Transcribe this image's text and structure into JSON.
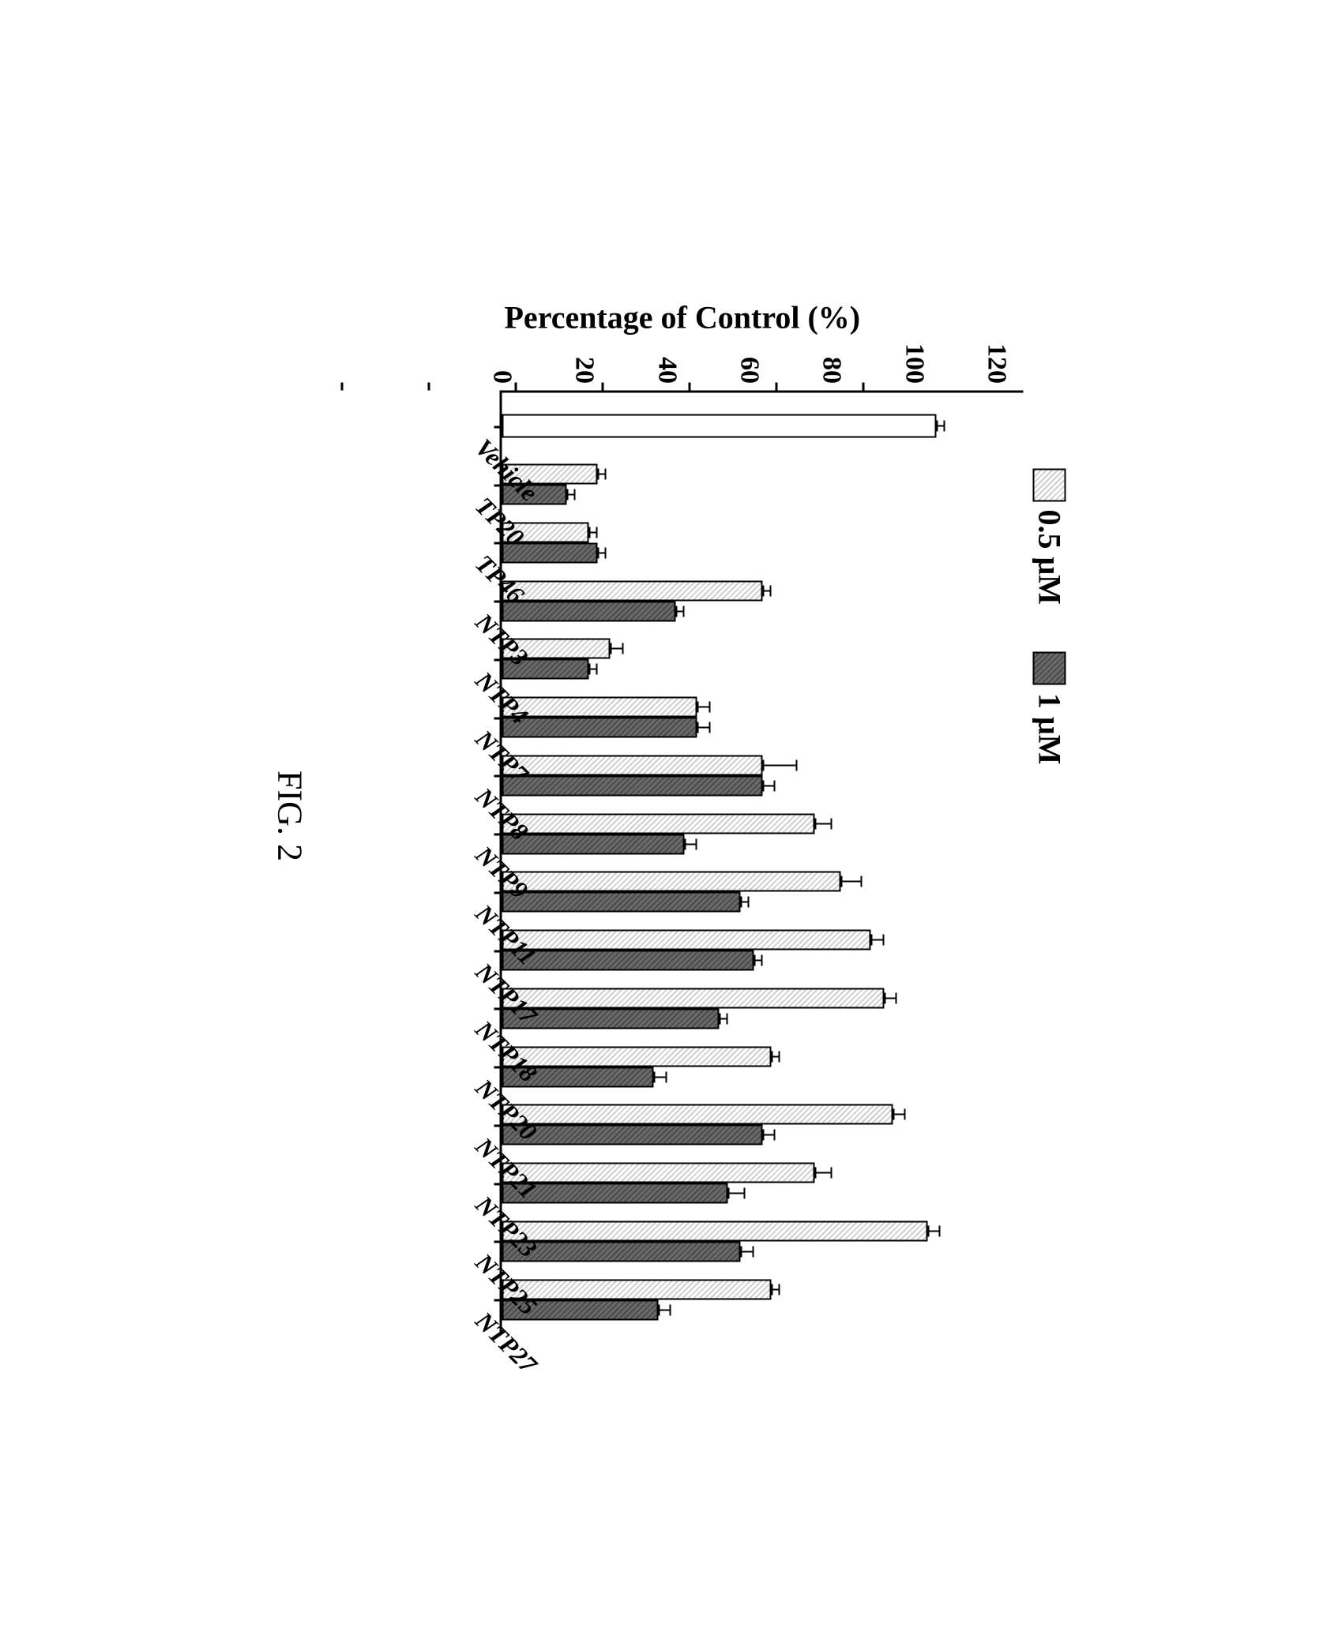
{
  "chart": {
    "type": "bar",
    "y_title": "Percentage of Control (%)",
    "ylim": [
      0,
      120
    ],
    "yticks": [
      0,
      20,
      40,
      60,
      80,
      100,
      120
    ],
    "categories": [
      "Vehicle",
      "TP20",
      "TP46",
      "NTP3",
      "NTP4",
      "NTP7",
      "NTP8",
      "NTP9",
      "NTP11",
      "NTP17",
      "NTP18",
      "NTP20",
      "NTP21",
      "NTP23",
      "NTP25",
      "NTP27"
    ],
    "series": [
      {
        "label": "0.5 μM",
        "fill": "#cfcfcf",
        "pattern": "light"
      },
      {
        "label": "1 μM",
        "fill": "#6a6a6a",
        "pattern": "dark"
      }
    ],
    "vehicle": {
      "value": 100,
      "err": 2,
      "fill": "#ffffff"
    },
    "data": [
      {
        "cat": "TP20",
        "v": [
          22,
          15
        ],
        "e": [
          2,
          2
        ]
      },
      {
        "cat": "TP46",
        "v": [
          20,
          22
        ],
        "e": [
          2,
          2
        ]
      },
      {
        "cat": "NTP3",
        "v": [
          60,
          40
        ],
        "e": [
          2,
          2
        ]
      },
      {
        "cat": "NTP4",
        "v": [
          25,
          20
        ],
        "e": [
          3,
          2
        ]
      },
      {
        "cat": "NTP7",
        "v": [
          45,
          45
        ],
        "e": [
          3,
          3
        ]
      },
      {
        "cat": "NTP8",
        "v": [
          60,
          60
        ],
        "e": [
          8,
          3
        ]
      },
      {
        "cat": "NTP9",
        "v": [
          72,
          42
        ],
        "e": [
          4,
          3
        ]
      },
      {
        "cat": "NTP11",
        "v": [
          78,
          55
        ],
        "e": [
          5,
          2
        ]
      },
      {
        "cat": "NTP17",
        "v": [
          85,
          58
        ],
        "e": [
          3,
          2
        ]
      },
      {
        "cat": "NTP18",
        "v": [
          88,
          50
        ],
        "e": [
          3,
          2
        ]
      },
      {
        "cat": "NTP20",
        "v": [
          62,
          35
        ],
        "e": [
          2,
          3
        ]
      },
      {
        "cat": "NTP21",
        "v": [
          90,
          60
        ],
        "e": [
          3,
          3
        ]
      },
      {
        "cat": "NTP23",
        "v": [
          72,
          52
        ],
        "e": [
          4,
          4
        ]
      },
      {
        "cat": "NTP25",
        "v": [
          98,
          55
        ],
        "e": [
          3,
          3
        ]
      },
      {
        "cat": "NTP27",
        "v": [
          62,
          36
        ],
        "e": [
          2,
          3
        ]
      }
    ],
    "bar_border_color": "#000000",
    "axis_color": "#000000",
    "background_color": "#ffffff",
    "title_fontsize": 40,
    "tick_fontsize": 34,
    "xlabel_fontsize": 32,
    "xlabel_angle_deg": -45
  },
  "caption": "FIG. 2"
}
